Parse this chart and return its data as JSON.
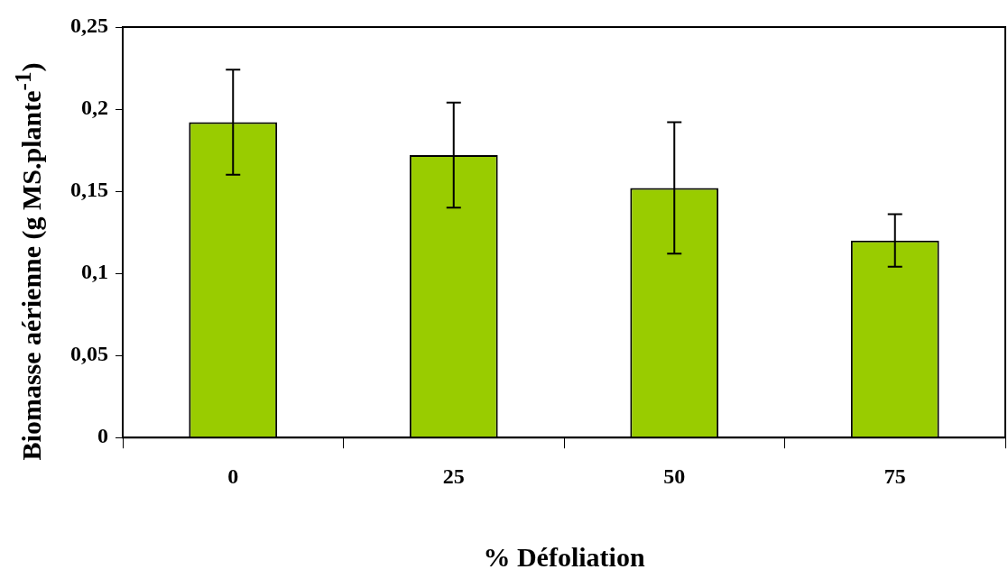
{
  "chart_data": {
    "type": "bar",
    "xlabel": "% Défoliation",
    "ylabel": "Biomasse aérienne (g MS.plante$^{-1}$)",
    "categories": [
      "0",
      "25",
      "50",
      "75"
    ],
    "values": [
      0.192,
      0.172,
      0.152,
      0.12
    ],
    "errors": [
      0.032,
      0.032,
      0.04,
      0.016
    ],
    "color": "#99cc00",
    "ylim": [
      0,
      0.25
    ],
    "yticks": [
      {
        "value": 0,
        "label": "0"
      },
      {
        "value": 0.05,
        "label": "0,05"
      },
      {
        "value": 0.1,
        "label": "0,1"
      },
      {
        "value": 0.15,
        "label": "0,15"
      },
      {
        "value": 0.2,
        "label": "0,2"
      },
      {
        "value": 0.25,
        "label": "0,25"
      }
    ],
    "grid": false,
    "legend": false
  }
}
